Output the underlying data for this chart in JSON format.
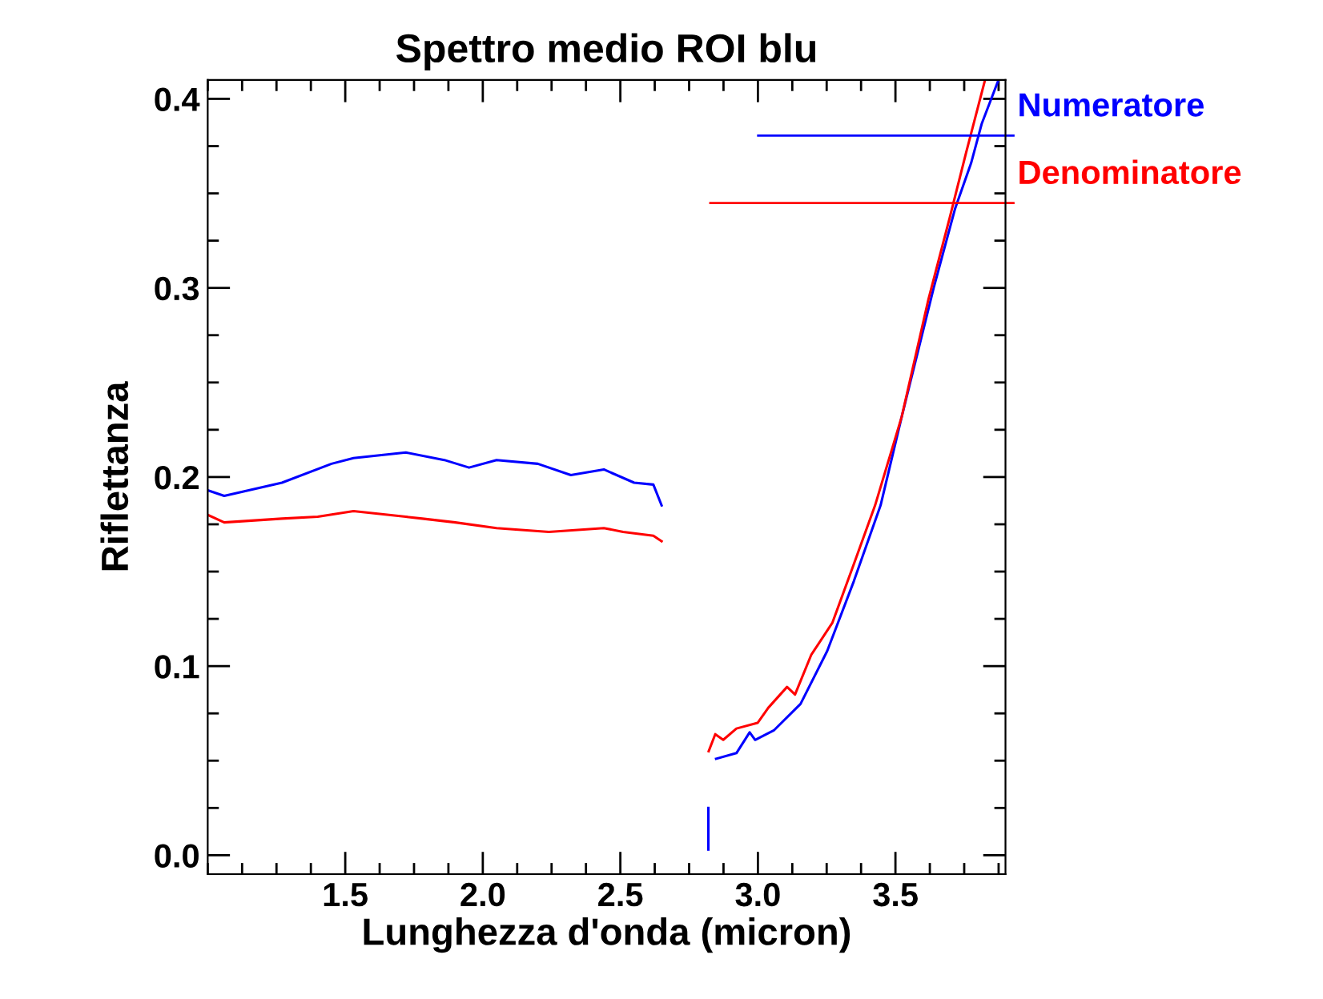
{
  "chart_data": {
    "type": "line",
    "title": "Spettro medio ROI blu",
    "xlabel": "Lunghezza d'onda (micron)",
    "ylabel": "Riflettanza",
    "xlim": [
      1.0,
      3.9
    ],
    "xticks": [
      {
        "value": 1.5,
        "label": "1.5"
      },
      {
        "value": 2,
        "label": "2.0"
      },
      {
        "value": 2.5,
        "label": "2.5"
      },
      {
        "value": 3,
        "label": "3.0"
      },
      {
        "value": 3.5,
        "label": "3.5"
      }
    ],
    "ylim": [
      -0.01,
      0.41
    ],
    "yticks": [
      {
        "value": 0,
        "label": "0.0"
      },
      {
        "value": 0.1,
        "label": "0.1"
      },
      {
        "value": 0.2,
        "label": "0.2"
      },
      {
        "value": 0.3,
        "label": "0.3"
      },
      {
        "value": 0.4,
        "label": "0.4"
      }
    ],
    "grid": false,
    "legend": "top right",
    "marker": "none",
    "line_style": "solid",
    "series": [
      {
        "name": "Numeratore",
        "color": "#0000ff",
        "x": [
          1.0,
          1.06,
          1.27,
          1.45,
          1.53,
          1.72,
          1.86,
          1.95,
          2.05,
          2.2,
          2.32,
          2.44,
          2.55,
          2.62,
          2.65
        ],
        "values": [
          0.193,
          0.19,
          0.197,
          0.207,
          0.21,
          0.213,
          0.209,
          0.205,
          0.209,
          0.207,
          0.201,
          0.204,
          0.197,
          0.196,
          0.185
        ]
      },
      {
        "name": "Denominatore",
        "color": "#ff0000",
        "x": [
          1.0,
          1.06,
          1.27,
          1.4,
          1.53,
          1.72,
          1.78,
          1.9,
          2.05,
          2.24,
          2.44,
          2.51,
          2.62,
          2.65
        ],
        "values": [
          0.18,
          0.176,
          0.178,
          0.179,
          0.182,
          0.179,
          0.178,
          0.176,
          0.173,
          0.171,
          0.173,
          0.171,
          0.169,
          0.166
        ]
      },
      {
        "color": "#0000ff",
        "x": [
          2.82,
          2.82
        ],
        "values": [
          0.003,
          0.025
        ]
      },
      {
        "color": "#0000ff",
        "x": [
          2.848,
          2.922,
          2.97,
          2.99,
          3.058,
          3.155,
          3.252,
          3.349,
          3.446,
          3.523,
          3.581,
          3.639,
          3.717,
          3.775,
          3.814,
          3.872
        ],
        "values": [
          0.051,
          0.054,
          0.065,
          0.061,
          0.066,
          0.08,
          0.108,
          0.145,
          0.185,
          0.232,
          0.266,
          0.3,
          0.342,
          0.366,
          0.387,
          0.409
        ]
      },
      {
        "color": "#ff0000",
        "x": [
          2.821,
          2.845,
          2.874,
          2.922,
          2.999,
          3.038,
          3.106,
          3.135,
          3.194,
          3.271,
          3.349,
          3.426,
          3.523,
          3.62,
          3.697,
          3.756,
          3.824
        ],
        "values": [
          0.055,
          0.064,
          0.061,
          0.067,
          0.07,
          0.078,
          0.089,
          0.085,
          0.106,
          0.123,
          0.154,
          0.185,
          0.232,
          0.294,
          0.337,
          0.371,
          0.409
        ]
      }
    ]
  }
}
